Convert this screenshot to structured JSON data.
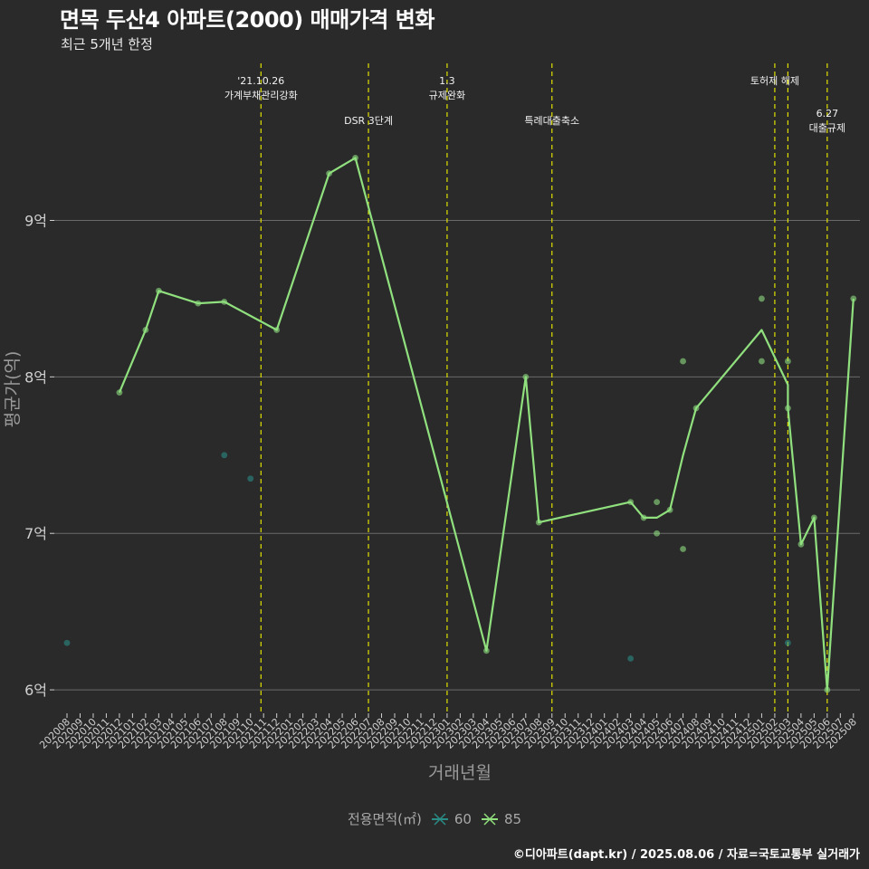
{
  "title": "면목 두산4 아파트(2000) 매매가격 변화",
  "subtitle": "최근 5개년 한정",
  "caption": "©디아파트(dapt.kr) / 2025.08.06 / 자료=국토교통부 실거래가",
  "legend": {
    "title": "전용면적(㎡)",
    "items": [
      {
        "label": "60",
        "color": "#2a8c86"
      },
      {
        "label": "85",
        "color": "#90e07e"
      }
    ]
  },
  "chart_data": {
    "type": "line",
    "xlabel": "거래년월",
    "ylabel": "평균가(억)",
    "ylim": [
      5.85,
      10.05
    ],
    "yticks": [
      6,
      7,
      8,
      9
    ],
    "ytick_labels": [
      "6억",
      "7억",
      "8억",
      "9억"
    ],
    "x_start_month": "2020-08",
    "categories": [
      "202008",
      "202009",
      "202010",
      "202011",
      "202012",
      "202101",
      "202102",
      "202103",
      "202104",
      "202105",
      "202106",
      "202107",
      "202108",
      "202109",
      "202110",
      "202111",
      "202112",
      "202201",
      "202202",
      "202203",
      "202204",
      "202205",
      "202206",
      "202207",
      "202208",
      "202209",
      "202210",
      "202211",
      "202212",
      "202301",
      "202302",
      "202303",
      "202304",
      "202305",
      "202306",
      "202307",
      "202308",
      "202309",
      "202310",
      "202311",
      "202312",
      "202401",
      "202402",
      "202403",
      "202404",
      "202405",
      "202406",
      "202407",
      "202408",
      "202409",
      "202410",
      "202411",
      "202412",
      "202501",
      "202502",
      "202503",
      "202504",
      "202505",
      "202506",
      "202507",
      "202508"
    ],
    "series": [
      {
        "name": "60",
        "color": "#2a8c86",
        "line": [],
        "points": [
          {
            "x": "202008",
            "y": 6.3
          },
          {
            "x": "202108",
            "y": 7.5
          },
          {
            "x": "202110",
            "y": 7.35
          },
          {
            "x": "202403",
            "y": 6.2
          },
          {
            "x": "202503",
            "y": 6.3
          }
        ]
      },
      {
        "name": "85",
        "color": "#90e07e",
        "line": [
          {
            "x": "202012",
            "y": 7.9
          },
          {
            "x": "202102",
            "y": 8.3
          },
          {
            "x": "202103",
            "y": 8.55
          },
          {
            "x": "202106",
            "y": 8.47
          },
          {
            "x": "202108",
            "y": 8.48
          },
          {
            "x": "202112",
            "y": 8.3
          },
          {
            "x": "202204",
            "y": 9.3
          },
          {
            "x": "202206",
            "y": 9.4
          },
          {
            "x": "202304",
            "y": 6.25
          },
          {
            "x": "202307",
            "y": 8.0
          },
          {
            "x": "202308",
            "y": 7.07
          },
          {
            "x": "202403",
            "y": 7.2
          },
          {
            "x": "202404",
            "y": 7.1
          },
          {
            "x": "202405",
            "y": 7.1
          },
          {
            "x": "202406",
            "y": 7.15
          },
          {
            "x": "202407",
            "y": 7.5
          },
          {
            "x": "202408",
            "y": 7.8
          },
          {
            "x": "202501",
            "y": 8.3
          },
          {
            "x": "202503",
            "y": 7.95
          },
          {
            "x": "202503",
            "y": 7.8
          },
          {
            "x": "202504",
            "y": 6.93
          },
          {
            "x": "202505",
            "y": 7.1
          },
          {
            "x": "202506",
            "y": 6.0
          },
          {
            "x": "202508",
            "y": 8.5
          }
        ],
        "points": [
          {
            "x": "202012",
            "y": 7.9
          },
          {
            "x": "202102",
            "y": 8.3
          },
          {
            "x": "202103",
            "y": 8.55
          },
          {
            "x": "202106",
            "y": 8.47
          },
          {
            "x": "202108",
            "y": 8.48
          },
          {
            "x": "202112",
            "y": 8.3
          },
          {
            "x": "202204",
            "y": 9.3
          },
          {
            "x": "202206",
            "y": 9.4
          },
          {
            "x": "202304",
            "y": 6.25
          },
          {
            "x": "202307",
            "y": 8.0
          },
          {
            "x": "202308",
            "y": 7.07
          },
          {
            "x": "202403",
            "y": 7.2
          },
          {
            "x": "202404",
            "y": 7.1
          },
          {
            "x": "202405",
            "y": 7.2
          },
          {
            "x": "202405",
            "y": 7.0
          },
          {
            "x": "202406",
            "y": 7.15
          },
          {
            "x": "202407",
            "y": 8.1
          },
          {
            "x": "202407",
            "y": 6.9
          },
          {
            "x": "202408",
            "y": 7.8
          },
          {
            "x": "202501",
            "y": 8.5
          },
          {
            "x": "202501",
            "y": 8.1
          },
          {
            "x": "202503",
            "y": 8.1
          },
          {
            "x": "202503",
            "y": 7.8
          },
          {
            "x": "202504",
            "y": 6.93
          },
          {
            "x": "202505",
            "y": 7.1
          },
          {
            "x": "202506",
            "y": 6.0
          },
          {
            "x": "202508",
            "y": 8.5
          }
        ]
      }
    ],
    "events": [
      {
        "x": "202110.8",
        "lines": [
          "'21.10.26",
          "가계부채관리강화"
        ],
        "tier": 0
      },
      {
        "x": "202207",
        "lines": [
          "DSR 3단계"
        ],
        "tier": 1
      },
      {
        "x": "202301",
        "lines": [
          "1.3",
          "규제완화"
        ],
        "tier": 0
      },
      {
        "x": "202309",
        "lines": [
          "특례대출축소"
        ],
        "tier": 1
      },
      {
        "x": "202502",
        "lines": [
          "토허제 해제"
        ],
        "tier": 0
      },
      {
        "x": "202503",
        "lines": [],
        "tier": 0
      },
      {
        "x": "202506",
        "lines": [
          "6.27",
          "대출규제"
        ],
        "tier": 2
      }
    ]
  }
}
